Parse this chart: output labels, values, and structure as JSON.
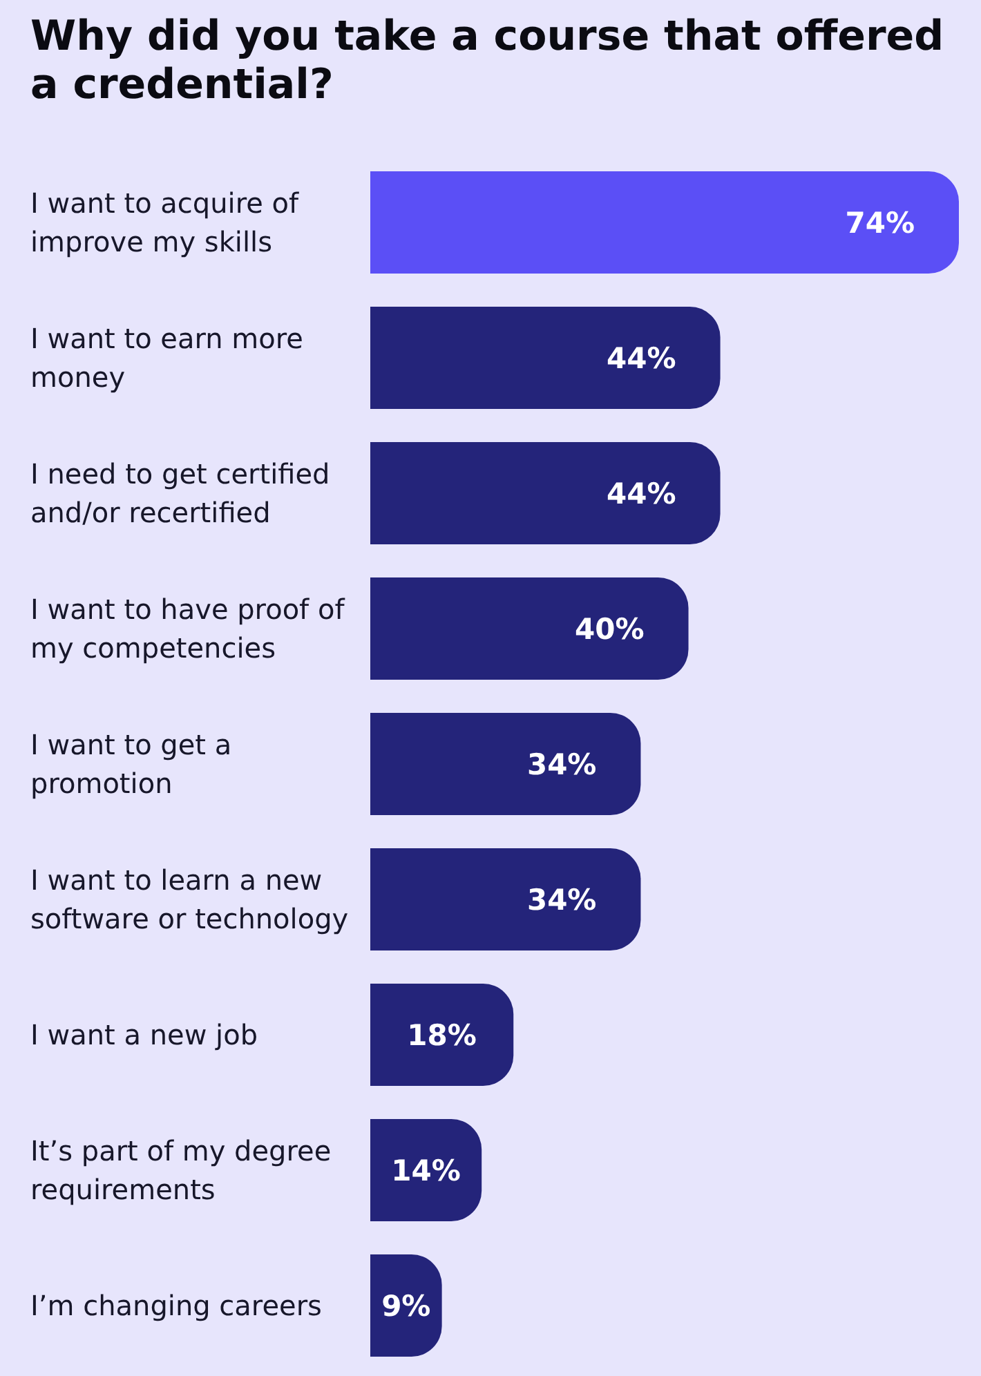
{
  "chart_data": {
    "type": "bar",
    "orientation": "horizontal",
    "title": "Why did you take a course that offered a credential?",
    "categories": [
      "I want to acquire of improve my skills",
      "I want to earn more money",
      "I need to get certified and/or recertified",
      "I want to have proof of my competencies",
      "I want to get a promotion",
      "I want to learn a new software or technology",
      "I want a new job",
      "It’s part of my degree requirements",
      "I’m changing careers"
    ],
    "values": [
      74,
      44,
      44,
      40,
      34,
      34,
      18,
      14,
      9
    ],
    "colors": [
      "#5b4ff6",
      "#24247a",
      "#24247a",
      "#24247a",
      "#24247a",
      "#24247a",
      "#24247a",
      "#24247a",
      "#24247a"
    ],
    "value_labels": [
      "74%",
      "44%",
      "44%",
      "40%",
      "34%",
      "34%",
      "18%",
      "14%",
      "9%"
    ]
  }
}
